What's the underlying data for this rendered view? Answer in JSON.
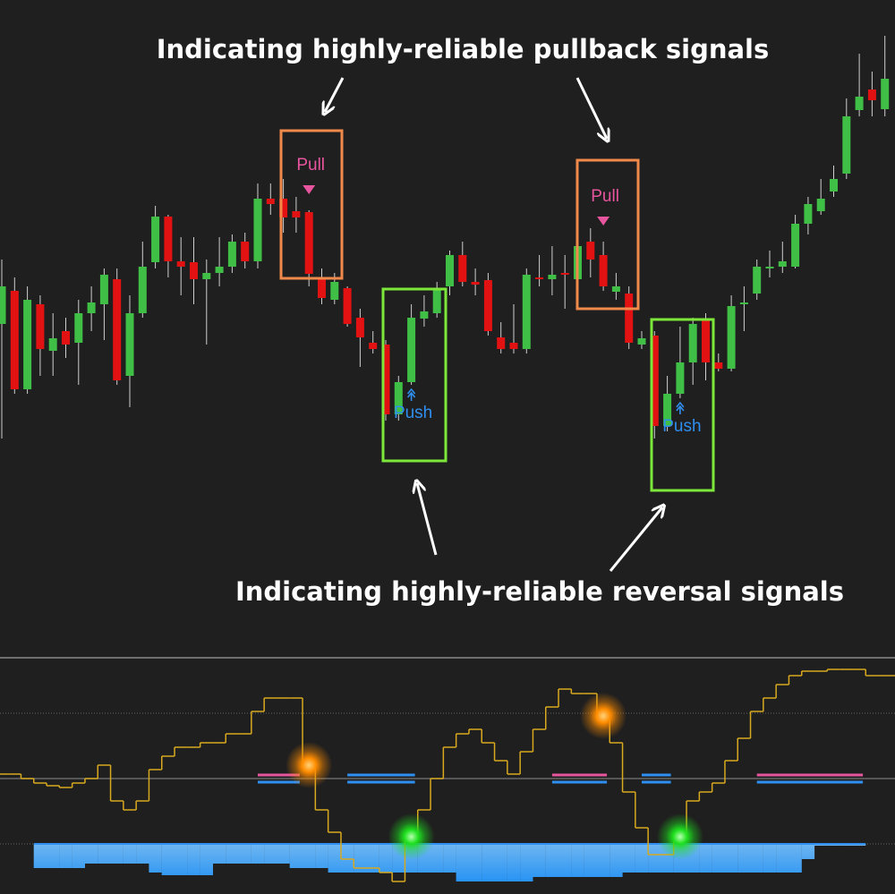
{
  "chart_data": {
    "type": "candlestick",
    "annotations": [
      "Indicating highly-reliable pullback signals",
      "Indicating highly-reliable reversal signals"
    ],
    "open": [
      358,
      395,
      285,
      380,
      328,
      350,
      337,
      370,
      380,
      408,
      300,
      370,
      427,
      478,
      428,
      427,
      408,
      415,
      422,
      450,
      428,
      498,
      498,
      484,
      483,
      410,
      385,
      398,
      365,
      337,
      335,
      257,
      293,
      364,
      370,
      400,
      435,
      405,
      407,
      343,
      337,
      330,
      410,
      408,
      415,
      408,
      450,
      435,
      394,
      392,
      335,
      345,
      244,
      280,
      315,
      363,
      315,
      308,
      380,
      392,
      420,
      422,
      422,
      470,
      484,
      506,
      526,
      597,
      620,
      598
    ],
    "high": [
      430,
      410,
      400,
      390,
      370,
      365,
      385,
      400,
      420,
      420,
      390,
      450,
      490,
      480,
      455,
      455,
      430,
      455,
      458,
      460,
      515,
      515,
      520,
      500,
      485,
      420,
      415,
      400,
      375,
      350,
      340,
      300,
      380,
      390,
      405,
      440,
      450,
      420,
      415,
      360,
      380,
      420,
      435,
      445,
      435,
      470,
      465,
      450,
      415,
      400,
      350,
      350,
      300,
      355,
      365,
      370,
      325,
      390,
      400,
      430,
      440,
      450,
      480,
      500,
      520,
      535,
      610,
      660,
      640,
      680
    ],
    "low": [
      230,
      280,
      280,
      300,
      300,
      320,
      290,
      350,
      340,
      290,
      265,
      365,
      420,
      410,
      390,
      380,
      335,
      400,
      415,
      420,
      420,
      480,
      460,
      460,
      400,
      380,
      380,
      355,
      310,
      325,
      250,
      250,
      290,
      355,
      365,
      390,
      400,
      390,
      345,
      325,
      325,
      325,
      400,
      390,
      375,
      400,
      410,
      395,
      385,
      330,
      330,
      230,
      238,
      275,
      290,
      295,
      305,
      305,
      350,
      385,
      410,
      415,
      420,
      458,
      480,
      500,
      520,
      590,
      590,
      590
    ],
    "close": [
      400,
      285,
      385,
      330,
      342,
      335,
      370,
      382,
      413,
      295,
      370,
      422,
      478,
      428,
      422,
      408,
      415,
      422,
      450,
      428,
      498,
      492,
      477,
      477,
      414,
      387,
      405,
      358,
      343,
      330,
      257,
      293,
      365,
      372,
      398,
      435,
      405,
      402,
      350,
      330,
      330,
      413,
      408,
      413,
      413,
      445,
      430,
      400,
      400,
      337,
      342,
      244,
      280,
      315,
      358,
      315,
      308,
      378,
      382,
      422,
      422,
      428,
      470,
      492,
      498,
      520,
      590,
      612,
      608,
      632
    ],
    "up_color": "#3fbf45",
    "down_color": "#e31212",
    "ylim": [
      0,
      720
    ],
    "signals": [
      {
        "kind": "pull",
        "index": 24,
        "label": "Pull"
      },
      {
        "kind": "push",
        "index": 32,
        "label": "Push"
      },
      {
        "kind": "pull",
        "index": 47,
        "label": "Pull"
      },
      {
        "kind": "push",
        "index": 53,
        "label": "Push"
      }
    ],
    "pull_color": "#e8559f",
    "push_color": "#2f8ff0",
    "oscillator": {
      "values": [
        5,
        5,
        0,
        -5,
        -8,
        -10,
        -5,
        0,
        15,
        -25,
        -35,
        -25,
        10,
        25,
        35,
        35,
        40,
        40,
        50,
        50,
        75,
        90,
        90,
        90,
        15,
        -35,
        -60,
        -90,
        -100,
        -100,
        -105,
        -115,
        -65,
        -35,
        0,
        35,
        50,
        55,
        40,
        20,
        5,
        30,
        55,
        80,
        100,
        95,
        95,
        70,
        40,
        -15,
        -55,
        -85,
        -85,
        -65,
        -25,
        -15,
        -5,
        20,
        45,
        75,
        90,
        105,
        115,
        120,
        120,
        122,
        122,
        122,
        115,
        115
      ],
      "area": [
        null,
        null,
        null,
        -100,
        -100,
        -100,
        -100,
        -95,
        -95,
        -95,
        -95,
        -95,
        -105,
        -108,
        -108,
        -108,
        -108,
        -95,
        -95,
        -95,
        -95,
        -95,
        -95,
        -100,
        -100,
        -100,
        -105,
        -105,
        -105,
        -105,
        -105,
        -105,
        -105,
        -105,
        -105,
        -105,
        -115,
        -115,
        -115,
        -115,
        -115,
        -115,
        -110,
        -110,
        -110,
        -110,
        -110,
        -110,
        -110,
        -105,
        -105,
        -105,
        -105,
        -105,
        -105,
        -105,
        -105,
        -105,
        -105,
        -105,
        -105,
        -105,
        -105,
        -90,
        -75,
        -75,
        -75,
        -75,
        null,
        null
      ],
      "ylim": [
        -129,
        135
      ],
      "levels": [
        -73,
        0,
        73
      ],
      "color": "#d8a91f",
      "area_color": "#2f8ff0",
      "zones": [
        {
          "kind": "pull",
          "from": 20,
          "to": 23
        },
        {
          "kind": "push",
          "from": 27,
          "to": 32
        },
        {
          "kind": "pull",
          "from": 43,
          "to": 47
        },
        {
          "kind": "push",
          "from": 50,
          "to": 52
        },
        {
          "kind": "pull",
          "from": 59,
          "to": 67
        }
      ]
    }
  }
}
